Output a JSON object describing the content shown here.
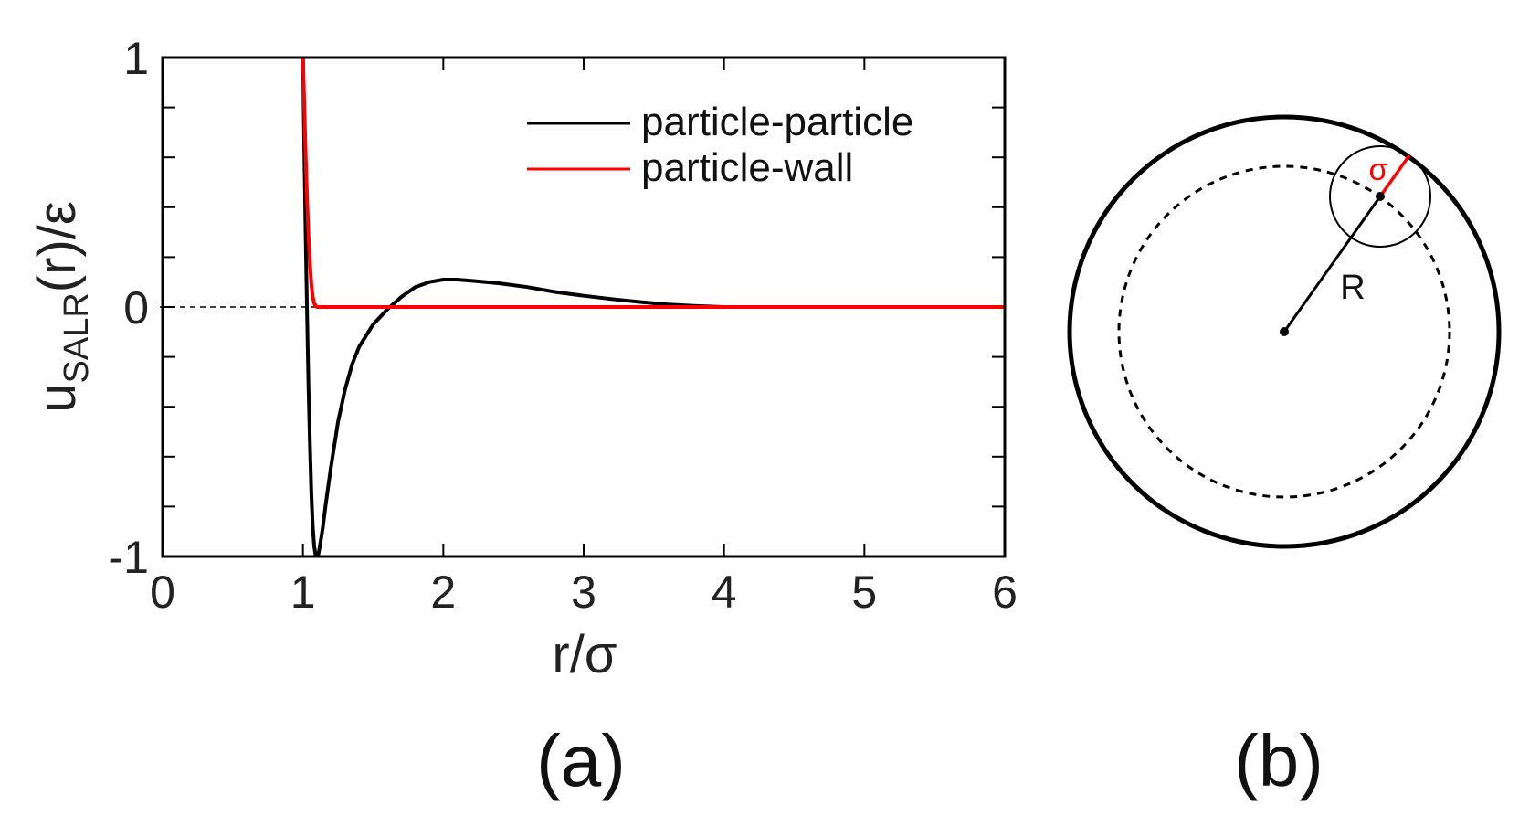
{
  "chart_data": {
    "type": "line",
    "ylabel": {
      "main": "u",
      "sub": "SALR",
      "rest": "(r)/ε"
    },
    "xlabel": "r/σ",
    "xlim": [
      0,
      6
    ],
    "ylim": [
      -1,
      1
    ],
    "x_ticks": [
      0,
      1,
      2,
      3,
      4,
      5,
      6
    ],
    "x_tick_labels": [
      "0",
      "1",
      "2",
      "3",
      "4",
      "5",
      "6"
    ],
    "y_tick_labels": [
      {
        "value": 1,
        "label": "1"
      },
      {
        "value": 0,
        "label": "0"
      },
      {
        "value": -1,
        "label": "-1"
      }
    ],
    "legend_position": "top-right",
    "zero_line": {
      "y": 0,
      "style": "dashed"
    },
    "series": [
      {
        "name": "particle-particle",
        "color": "#000000",
        "x": [
          1.0,
          1.01,
          1.02,
          1.03,
          1.04,
          1.05,
          1.06,
          1.07,
          1.08,
          1.09,
          1.1,
          1.11,
          1.12,
          1.14,
          1.16,
          1.18,
          1.2,
          1.25,
          1.3,
          1.35,
          1.4,
          1.5,
          1.6,
          1.7,
          1.8,
          1.9,
          2.0,
          2.1,
          2.2,
          2.4,
          2.6,
          2.8,
          3.0,
          3.2,
          3.4,
          3.6,
          3.8,
          4.0,
          4.5,
          5.0,
          5.5,
          6.0
        ],
        "y": [
          1.0,
          0.62,
          0.27,
          -0.05,
          -0.33,
          -0.56,
          -0.75,
          -0.88,
          -0.96,
          -0.995,
          -1.0,
          -0.99,
          -0.96,
          -0.89,
          -0.8,
          -0.72,
          -0.64,
          -0.46,
          -0.33,
          -0.23,
          -0.16,
          -0.07,
          -0.01,
          0.04,
          0.08,
          0.1,
          0.11,
          0.11,
          0.105,
          0.095,
          0.08,
          0.06,
          0.045,
          0.032,
          0.02,
          0.01,
          0.004,
          0.0,
          0.0,
          0.0,
          0.0,
          0.0
        ]
      },
      {
        "name": "particle-wall",
        "color": "#ff0000",
        "x": [
          1.0,
          1.01,
          1.02,
          1.03,
          1.04,
          1.05,
          1.06,
          1.07,
          1.08,
          1.09,
          1.1,
          1.12,
          1.5,
          2.0,
          3.0,
          4.0,
          5.0,
          6.0
        ],
        "y": [
          1.0,
          0.8,
          0.6,
          0.42,
          0.28,
          0.17,
          0.09,
          0.04,
          0.015,
          0.005,
          0.0,
          0.0,
          0.0,
          0.0,
          0.0,
          0.0,
          0.0,
          0.0
        ]
      }
    ]
  },
  "diagram": {
    "sigma_label": "σ",
    "radius_label": "R",
    "sigma_color": "#ff0000"
  },
  "panel_labels": {
    "a": "(a)",
    "b": "(b)"
  }
}
